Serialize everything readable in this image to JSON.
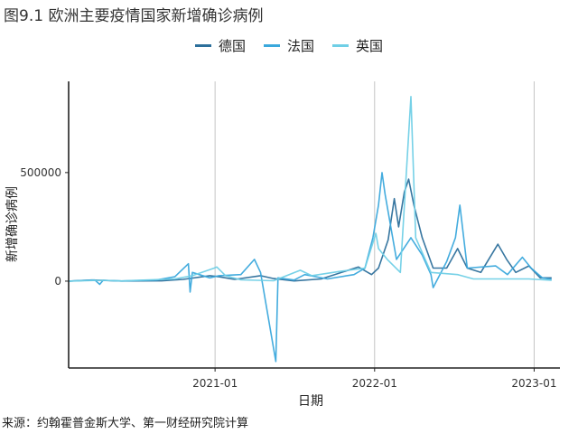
{
  "figure": {
    "title": "图9.1 欧洲主要疫情国家新增确诊病例",
    "source": "来源：约翰霍普金斯大学、第一财经研究院计算"
  },
  "chart_data": {
    "type": "line",
    "xlabel": "日期",
    "ylabel": "新增确诊病例",
    "x_ticks": [
      "2021-01",
      "2022-01",
      "2023-01"
    ],
    "y_ticks": [
      0,
      500000
    ],
    "y_tick_labels": [
      "0",
      "500000"
    ],
    "xlim": [
      "2020-02-01",
      "2023-03-01"
    ],
    "ylim": [
      -400000,
      920000
    ],
    "grid": "vertical lines at x ticks",
    "legend_position": "top",
    "series": [
      {
        "name": "德国",
        "color": "#2c6f9b",
        "points": [
          [
            "2020-02-01",
            0
          ],
          [
            "2020-03-25",
            5000
          ],
          [
            "2020-06-01",
            500
          ],
          [
            "2020-09-01",
            1500
          ],
          [
            "2020-10-20",
            8000
          ],
          [
            "2020-12-20",
            25000
          ],
          [
            "2021-01-10",
            20000
          ],
          [
            "2021-02-15",
            8000
          ],
          [
            "2021-04-15",
            25000
          ],
          [
            "2021-05-15",
            12000
          ],
          [
            "2021-07-01",
            1000
          ],
          [
            "2021-09-01",
            10000
          ],
          [
            "2021-11-25",
            65000
          ],
          [
            "2021-12-25",
            30000
          ],
          [
            "2022-01-10",
            60000
          ],
          [
            "2022-02-01",
            190000
          ],
          [
            "2022-02-15",
            380000
          ],
          [
            "2022-02-25",
            250000
          ],
          [
            "2022-03-10",
            410000
          ],
          [
            "2022-03-20",
            470000
          ],
          [
            "2022-04-01",
            350000
          ],
          [
            "2022-04-20",
            200000
          ],
          [
            "2022-05-15",
            60000
          ],
          [
            "2022-06-15",
            60000
          ],
          [
            "2022-07-10",
            150000
          ],
          [
            "2022-08-01",
            60000
          ],
          [
            "2022-09-01",
            40000
          ],
          [
            "2022-10-10",
            170000
          ],
          [
            "2022-10-30",
            100000
          ],
          [
            "2022-11-20",
            40000
          ],
          [
            "2022-12-20",
            70000
          ],
          [
            "2023-01-15",
            15000
          ],
          [
            "2023-02-10",
            15000
          ]
        ]
      },
      {
        "name": "法国",
        "color": "#3aa8dc",
        "points": [
          [
            "2020-02-01",
            0
          ],
          [
            "2020-04-01",
            5000
          ],
          [
            "2020-04-12",
            -15000
          ],
          [
            "2020-04-20",
            4000
          ],
          [
            "2020-06-01",
            500
          ],
          [
            "2020-08-20",
            5000
          ],
          [
            "2020-10-01",
            20000
          ],
          [
            "2020-11-01",
            80000
          ],
          [
            "2020-11-05",
            -50000
          ],
          [
            "2020-11-10",
            40000
          ],
          [
            "2020-12-20",
            15000
          ],
          [
            "2021-01-10",
            25000
          ],
          [
            "2021-03-01",
            30000
          ],
          [
            "2021-04-01",
            100000
          ],
          [
            "2021-04-15",
            40000
          ],
          [
            "2021-05-20",
            -370000
          ],
          [
            "2021-05-25",
            15000
          ],
          [
            "2021-07-01",
            5000
          ],
          [
            "2021-07-25",
            30000
          ],
          [
            "2021-09-15",
            10000
          ],
          [
            "2021-11-15",
            30000
          ],
          [
            "2021-12-10",
            60000
          ],
          [
            "2021-12-28",
            200000
          ],
          [
            "2022-01-10",
            350000
          ],
          [
            "2022-01-18",
            500000
          ],
          [
            "2022-01-25",
            400000
          ],
          [
            "2022-02-20",
            100000
          ],
          [
            "2022-03-25",
            200000
          ],
          [
            "2022-04-20",
            120000
          ],
          [
            "2022-05-10",
            30000
          ],
          [
            "2022-05-15",
            -30000
          ],
          [
            "2022-06-15",
            90000
          ],
          [
            "2022-07-05",
            200000
          ],
          [
            "2022-07-15",
            350000
          ],
          [
            "2022-08-01",
            60000
          ],
          [
            "2022-10-05",
            70000
          ],
          [
            "2022-11-01",
            30000
          ],
          [
            "2022-12-05",
            110000
          ],
          [
            "2022-12-25",
            60000
          ],
          [
            "2023-01-20",
            15000
          ],
          [
            "2023-02-10",
            8000
          ]
        ]
      },
      {
        "name": "英国",
        "color": "#6fcfe6",
        "points": [
          [
            "2020-02-01",
            0
          ],
          [
            "2020-04-15",
            4000
          ],
          [
            "2020-06-01",
            1000
          ],
          [
            "2020-10-01",
            10000
          ],
          [
            "2020-11-10",
            25000
          ],
          [
            "2020-12-30",
            60000
          ],
          [
            "2021-01-05",
            65000
          ],
          [
            "2021-01-25",
            25000
          ],
          [
            "2021-03-01",
            6000
          ],
          [
            "2021-05-15",
            2000
          ],
          [
            "2021-07-15",
            50000
          ],
          [
            "2021-08-10",
            25000
          ],
          [
            "2021-10-15",
            45000
          ],
          [
            "2021-12-10",
            60000
          ],
          [
            "2022-01-04",
            220000
          ],
          [
            "2022-01-10",
            150000
          ],
          [
            "2022-01-30",
            100000
          ],
          [
            "2022-03-01",
            40000
          ],
          [
            "2022-03-25",
            850000
          ],
          [
            "2022-04-05",
            200000
          ],
          [
            "2022-05-10",
            40000
          ],
          [
            "2022-07-10",
            30000
          ],
          [
            "2022-08-15",
            10000
          ],
          [
            "2022-10-15",
            10000
          ],
          [
            "2022-12-20",
            10000
          ],
          [
            "2023-02-10",
            4000
          ]
        ]
      }
    ]
  }
}
